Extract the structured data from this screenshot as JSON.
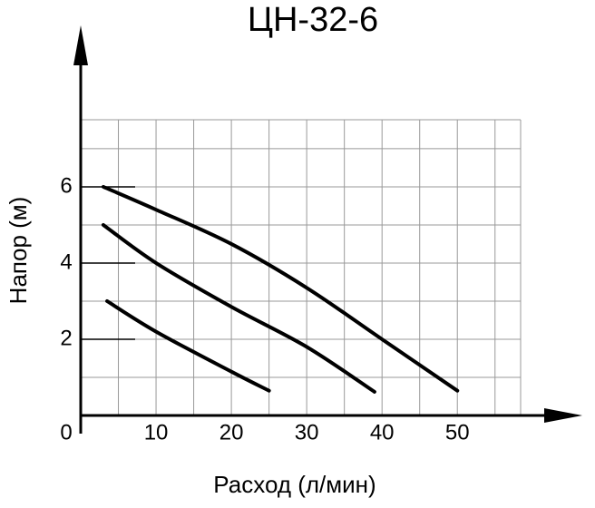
{
  "chart_data": {
    "type": "line",
    "title": "ЦН-32-6",
    "x_label": "Расход (л/мин)",
    "y_label": "Напор (м)",
    "series": [
      {
        "color": "#000000",
        "x": [
          3,
          10,
          20,
          30,
          40,
          50
        ],
        "values": [
          6.0,
          5.4,
          4.5,
          3.35,
          2.0,
          0.65
        ]
      },
      {
        "color": "#000000",
        "x": [
          3,
          10,
          20,
          30,
          39
        ],
        "values": [
          5.0,
          4.0,
          2.85,
          1.8,
          0.62
        ]
      },
      {
        "color": "#000000",
        "x": [
          3.5,
          10,
          20,
          25
        ],
        "values": [
          3.0,
          2.2,
          1.15,
          0.65
        ]
      }
    ],
    "xlim": [
      0,
      58.4
    ],
    "ylim": [
      0,
      7.76
    ],
    "xticks": [
      0,
      10,
      20,
      30,
      40,
      50
    ],
    "yticks": [
      2,
      4,
      6
    ],
    "xgrid": [
      5,
      10,
      15,
      20,
      25,
      30,
      35,
      40,
      45,
      50,
      55,
      58.4
    ],
    "ygrid": [
      1,
      2,
      3,
      4,
      5,
      6,
      7,
      7.76
    ],
    "grid": true
  }
}
